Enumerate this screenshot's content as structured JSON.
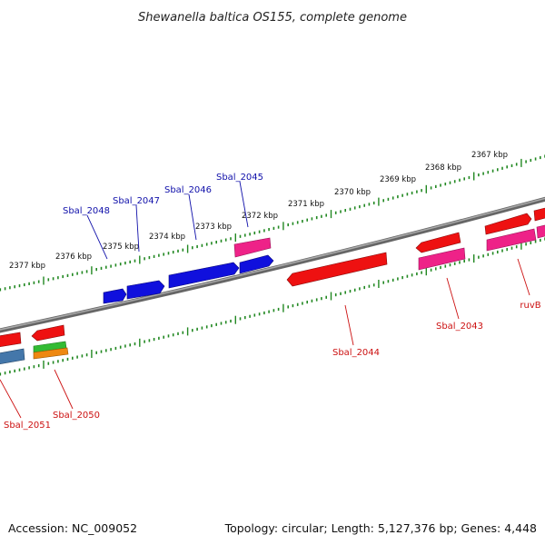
{
  "title": "Shewanella baltica OS155, complete genome",
  "footer": {
    "accession": "Accession: NC_009052",
    "summary": "Topology: circular; Length: 5,127,376 bp; Genes: 4,448"
  },
  "scale_labels": [
    "2367 kbp",
    "2368 kbp",
    "2369 kbp",
    "2370 kbp",
    "2371 kbp",
    "2372 kbp",
    "2373 kbp",
    "2374 kbp",
    "2375 kbp",
    "2376 kbp",
    "2377 kbp"
  ],
  "gene_labels_forward": [
    "Sbal_2045",
    "Sbal_2046",
    "Sbal_2047",
    "Sbal_2048"
  ],
  "gene_labels_reverse": [
    "ruvB",
    "Sbal_2043",
    "Sbal_2044",
    "Sbal_2050",
    "Sbal_2051"
  ],
  "colors": {
    "forward_gene": "#1010dd",
    "reverse_gene": "#ee1111",
    "pink_gene": "#ee2288",
    "green_gene": "#33bb33",
    "orange_gene": "#ee8811",
    "steel_gene": "#4477aa",
    "backbone": "#888888",
    "tick": "#228822",
    "forward_label": "#1010aa",
    "reverse_label": "#cc1111"
  }
}
